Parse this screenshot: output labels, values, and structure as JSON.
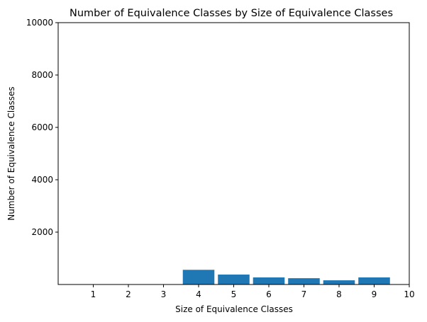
{
  "chart_data": {
    "type": "bar",
    "title": "Number of Equivalence Classes by Size of Equivalence Classes",
    "xlabel": "Size of Equivalence Classes",
    "ylabel": "Number of Equivalence Classes",
    "xlim": [
      0,
      10
    ],
    "ylim": [
      0,
      10000
    ],
    "xticks": [
      1,
      2,
      3,
      4,
      5,
      6,
      7,
      8,
      9,
      10
    ],
    "yticks": [
      2000,
      4000,
      6000,
      8000,
      10000
    ],
    "categories": [
      4,
      5,
      6,
      7,
      8,
      9
    ],
    "values": [
      560,
      380,
      270,
      240,
      160,
      270
    ],
    "bar_color": "#1f77b4",
    "grid": false,
    "legend": "none"
  }
}
